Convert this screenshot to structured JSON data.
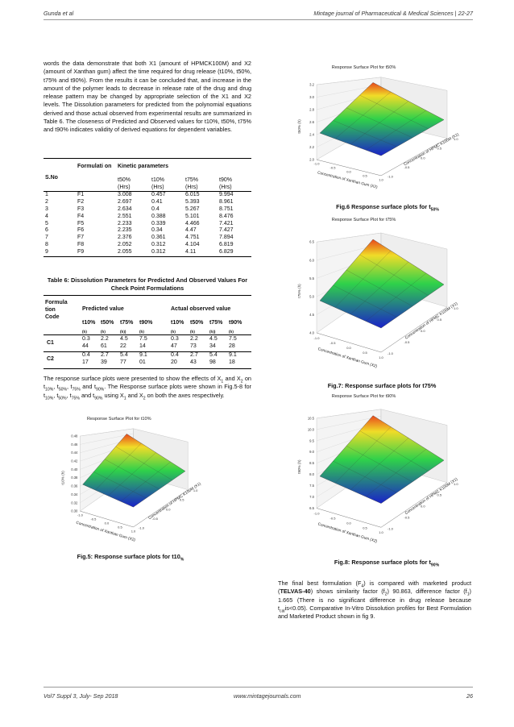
{
  "header": {
    "left": "Gunda et al",
    "right": "Mintage journal of Pharmaceutical & Medical Sciences",
    "pages": "22-27"
  },
  "footer": {
    "left": "Vol7 Suppl 3, July- Sep 2018",
    "center": "www.mintagejournals.com",
    "page": "26"
  },
  "intro_paragraph": "words the data demonstrate that both X1 (amount of HPMCK100M) and X2 (amount of Xanthan gum) affect the time required for drug release (t10%, t50%, t75% and t90%). From the results it can be concluded that, and increase in the amount of the polymer leads to decrease in release rate of the drug and drug release pattern may be changed by appropriate selection of the X1 and X2 levels. The Dissolution parameters for predicted from the polynomial equations derived and those actual observed from experimental results are summarized in Table 6. The closeness of Predicted and Observed values for t10%, t50%, t75% and t90% indicates validity of derived equations for dependent variables.",
  "table1": {
    "col_sno": "S.No",
    "col_formulation": "Formulati on",
    "col_kinetic": "Kinetic parameters",
    "subheads": [
      "t50%",
      "t10%",
      "t75%",
      "t90%"
    ],
    "units": [
      "(Hrs)",
      "(Hrs)",
      "(Hrs)",
      "(Hrs)"
    ],
    "rows": [
      [
        "1",
        "F1",
        "3.008",
        "0.457",
        "6.015",
        "9.994"
      ],
      [
        "2",
        "F2",
        "2.697",
        "0.41",
        "5.393",
        "8.961"
      ],
      [
        "3",
        "F3",
        "2.634",
        "0.4",
        "5.267",
        "8.751"
      ],
      [
        "4",
        "F4",
        "2.551",
        "0.388",
        "5.101",
        "8.476"
      ],
      [
        "5",
        "F5",
        "2.233",
        "0.339",
        "4.466",
        "7.421"
      ],
      [
        "6",
        "F6",
        "2.235",
        "0.34",
        "4.47",
        "7.427"
      ],
      [
        "7",
        "F7",
        "2.376",
        "0.361",
        "4.751",
        "7.894"
      ],
      [
        "8",
        "F8",
        "2.052",
        "0.312",
        "4.104",
        "6.819"
      ],
      [
        "9",
        "F9",
        "2.055",
        "0.312",
        "4.11",
        "6.829"
      ]
    ]
  },
  "table6": {
    "caption": "Table 6: Dissolution Parameters for Predicted And Observed Values For Check Point Formulations",
    "col_formulation": "Formula tion Code",
    "predicted": "Predicted value",
    "actual": "Actual observed value",
    "t_heads": [
      "t10%",
      "t50%",
      "t75%",
      "t90%",
      "t10%",
      "t50%",
      "t75%",
      "t90%"
    ],
    "unit_heads": [
      "(h)",
      "(h)",
      "(h))",
      "(h)",
      "(h)",
      "(h)",
      "(h))",
      "(h)"
    ],
    "rows": [
      {
        "code": "C1",
        "line1": [
          "0.3",
          "2.2",
          "4.5",
          "7.5",
          "0.3",
          "2.2",
          "4.5",
          "7.5"
        ],
        "line2": [
          "44",
          "61",
          "22",
          "14",
          "47",
          "73",
          "34",
          "28"
        ]
      },
      {
        "code": "C2",
        "line1": [
          "0.4",
          "2.7",
          "5.4",
          "9.1",
          "0.4",
          "2.7",
          "5.4",
          "9.1"
        ],
        "line2": [
          "17",
          "39",
          "77",
          "01",
          "20",
          "43",
          "98",
          "18"
        ]
      }
    ]
  },
  "response_paragraph": "The response surface plots were presented to show the effects of X1 and X2 on t10%, t50%, t75% and t90%. The Response surface plots were shown in Fig.5-8 for t10%, t50%, t75% and t90% using X1 and X2 on both the axes respectively.",
  "final_paragraph": "The final best formulation (F4) is compared with marketed product (TELVAS-40) shows similarity factor (f2) 90.863, difference factor (f1) 1.665 (There is no significant difference in drug release because tcal is<0.05). Comparative In-Vitro Dissolution profiles for Best Formulation and Marketed Product shown in fig 9.",
  "plots": [
    {
      "id": "fig5",
      "title": "Response Surface Plot for t10%",
      "zlabel": "t10% (h)",
      "zticks": [
        "0.48",
        "0.46",
        "0.44",
        "0.42",
        "0.40",
        "0.38",
        "0.36",
        "0.34",
        "0.32",
        "0.30"
      ],
      "xlabel": "Concentration of Xanthan Gum (X2)",
      "ylabel": "Concentration of HPMC K100M (X1)",
      "caption": "Fig.5: Response surface plots for t10%"
    },
    {
      "id": "fig6",
      "title": "Response Surface Plot for t50%",
      "zlabel": "t50% (h)",
      "zticks": [
        "3.2",
        "3.0",
        "2.8",
        "2.6",
        "2.4",
        "2.2",
        "2.0"
      ],
      "xlabel": "Concentration of Xanthan Gum (X2)",
      "ylabel": "Concentration of HPMC K100M (X1)",
      "caption": "Fig.6 Response surface plots for t50%"
    },
    {
      "id": "fig7",
      "title": "Response Surface Plot for t75%",
      "zlabel": "t75% (h)",
      "zticks": [
        "6.5",
        "6.0",
        "5.5",
        "5.0",
        "4.5",
        "4.0"
      ],
      "xlabel": "Concentration of Xanthan Gum (X2)",
      "ylabel": "Concentration of HPMC K100M (X1)",
      "caption": "Fig.7: Response surface plots for t75%"
    },
    {
      "id": "fig8",
      "title": "Response Surface Plot for t90%",
      "zlabel": "t90% (h)",
      "zticks": [
        "10.5",
        "10.0",
        "9.5",
        "9.0",
        "8.5",
        "8.0",
        "7.5",
        "7.0",
        "6.5"
      ],
      "xlabel": "Concentration of Xanthan Gum (X2)",
      "ylabel": "Concentration of HPMC K100M (X1)",
      "caption": "Fig.8: Response surface plots for t90%"
    }
  ],
  "axis_ticks": [
    "1.0",
    "0.5",
    "0.0",
    "-0.5",
    "-1.0"
  ],
  "colors": {
    "surface_high": "#e8481c",
    "surface_mid": "#2fd14a",
    "surface_low": "#1a22c8"
  }
}
